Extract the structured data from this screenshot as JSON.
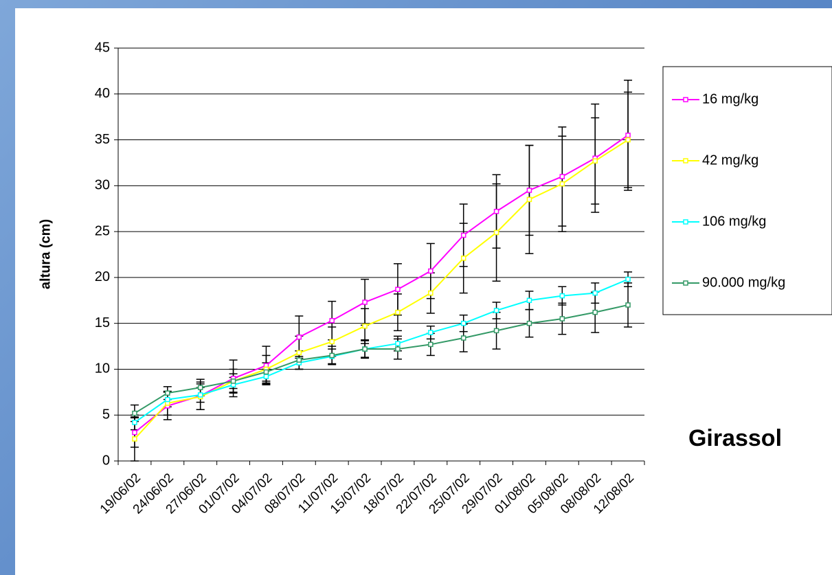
{
  "chart_data": {
    "type": "line",
    "y_label": "altura (cm)",
    "annotation": "Girassol",
    "categories": [
      "19/06/02",
      "24/06/02",
      "27/06/02",
      "01/07/02",
      "04/07/02",
      "08/07/02",
      "11/07/02",
      "15/07/02",
      "18/07/02",
      "22/07/02",
      "25/07/02",
      "29/07/02",
      "01/08/02",
      "05/08/02",
      "08/08/02",
      "12/08/02"
    ],
    "series": [
      {
        "name": "16 mg/kg",
        "color": "#ff00ff",
        "values": [
          3.1,
          6.0,
          7.1,
          9.0,
          10.4,
          13.5,
          15.3,
          17.3,
          18.7,
          20.7,
          24.6,
          27.2,
          29.5,
          31.0,
          33.0,
          35.5
        ],
        "errors": [
          1.6,
          1.5,
          1.5,
          2.0,
          2.1,
          2.3,
          2.1,
          2.5,
          2.8,
          3.0,
          3.4,
          4.0,
          4.9,
          5.4,
          5.9,
          6.0
        ]
      },
      {
        "name": "42 mg/kg",
        "color": "#ffff00",
        "values": [
          2.4,
          6.3,
          7.0,
          8.7,
          10.0,
          11.8,
          13.0,
          14.7,
          16.2,
          18.3,
          22.1,
          24.9,
          28.5,
          30.2,
          32.7,
          35.0
        ],
        "errors": [
          2.4,
          1.3,
          1.4,
          1.3,
          1.5,
          1.8,
          1.6,
          1.9,
          2.0,
          2.2,
          3.8,
          5.3,
          5.9,
          5.2,
          4.7,
          5.2
        ]
      },
      {
        "name": "106 mg/kg",
        "color": "#00ffff",
        "values": [
          4.2,
          6.7,
          7.2,
          8.3,
          9.2,
          10.7,
          11.4,
          12.2,
          12.8,
          14.0,
          15.0,
          16.4,
          17.5,
          18.0,
          18.3,
          19.8
        ],
        "errors": [
          0.8,
          0.8,
          0.8,
          0.8,
          0.8,
          0.7,
          0.8,
          0.9,
          0.8,
          0.7,
          0.9,
          0.9,
          1.0,
          1.0,
          1.1,
          0.8
        ]
      },
      {
        "name": "90.000 mg/kg",
        "color": "#339966",
        "values": [
          5.2,
          7.4,
          8.0,
          8.7,
          9.7,
          11.0,
          11.5,
          12.2,
          12.2,
          12.7,
          13.4,
          14.2,
          15.0,
          15.5,
          16.2,
          17.0
        ],
        "errors": [
          0.9,
          0.7,
          0.9,
          0.8,
          1.0,
          1.0,
          1.0,
          1.0,
          1.1,
          1.2,
          1.5,
          2.0,
          1.5,
          1.7,
          2.2,
          2.4
        ]
      }
    ],
    "ylim": [
      0,
      45
    ],
    "yticks": [
      0,
      5,
      10,
      15,
      20,
      25,
      30,
      35,
      40,
      45
    ],
    "grid": true,
    "legend": "right"
  }
}
